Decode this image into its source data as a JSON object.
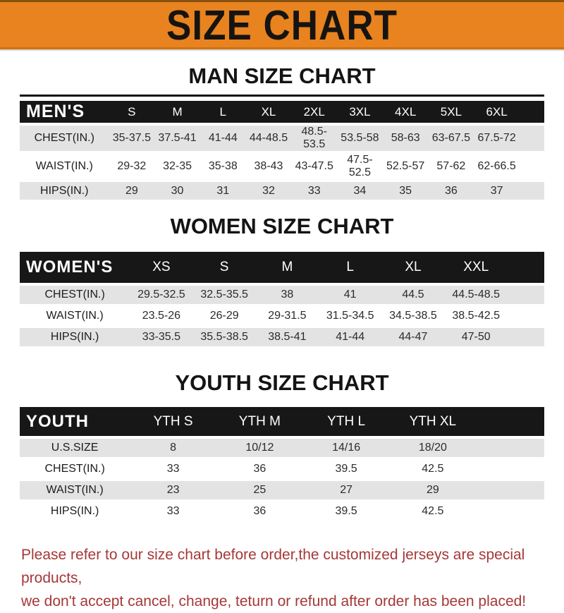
{
  "banner": {
    "title": "SIZE CHART"
  },
  "colors": {
    "banner_orange": "#E8831F",
    "header_bar_black": "#171717",
    "row_gray": "#E3E3E3",
    "footer_red": "#A63737"
  },
  "sections": [
    {
      "key": "men",
      "heading": "MAN SIZE CHART",
      "header_label": "MEN'S",
      "columns": [
        "S",
        "M",
        "L",
        "XL",
        "2XL",
        "3XL",
        "4XL",
        "5XL",
        "6XL"
      ],
      "rows": [
        {
          "label": "CHEST(IN.)",
          "values": [
            "35-37.5",
            "37.5-41",
            "41-44",
            "44-48.5",
            "48.5-53.5",
            "53.5-58",
            "58-63",
            "63-67.5",
            "67.5-72"
          ]
        },
        {
          "label": "WAIST(IN.)",
          "values": [
            "29-32",
            "32-35",
            "35-38",
            "38-43",
            "43-47.5",
            "47.5-52.5",
            "52.5-57",
            "57-62",
            "62-66.5"
          ]
        },
        {
          "label": "HIPS(IN.)",
          "values": [
            "29",
            "30",
            "31",
            "32",
            "33",
            "34",
            "35",
            "36",
            "37"
          ]
        }
      ]
    },
    {
      "key": "women",
      "heading": "WOMEN SIZE CHART",
      "header_label": "WOMEN'S",
      "columns": [
        "XS",
        "S",
        "M",
        "L",
        "XL",
        "XXL"
      ],
      "rows": [
        {
          "label": "CHEST(IN.)",
          "values": [
            "29.5-32.5",
            "32.5-35.5",
            "38",
            "41",
            "44.5",
            "44.5-48.5"
          ]
        },
        {
          "label": "WAIST(IN.)",
          "values": [
            "23.5-26",
            "26-29",
            "29-31.5",
            "31.5-34.5",
            "34.5-38.5",
            "38.5-42.5"
          ]
        },
        {
          "label": "HIPS(IN.)",
          "values": [
            "33-35.5",
            "35.5-38.5",
            "38.5-41",
            "41-44",
            "44-47",
            "47-50"
          ]
        }
      ]
    },
    {
      "key": "youth",
      "heading": "YOUTH SIZE CHART",
      "header_label": "YOUTH",
      "columns": [
        "YTH S",
        "YTH M",
        "YTH L",
        "YTH XL"
      ],
      "rows": [
        {
          "label": "U.S.SIZE",
          "values": [
            "8",
            "10/12",
            "14/16",
            "18/20"
          ]
        },
        {
          "label": "CHEST(IN.)",
          "values": [
            "33",
            "36",
            "39.5",
            "42.5"
          ]
        },
        {
          "label": "WAIST(IN.)",
          "values": [
            "23",
            "25",
            "27",
            "29"
          ]
        },
        {
          "label": "HIPS(IN.)",
          "values": [
            "33",
            "36",
            "39.5",
            "42.5"
          ]
        }
      ]
    }
  ],
  "footer": {
    "line1": "Please refer to our size chart before order,the customized jerseys are special products,",
    "line2": "we don't accept cancel, change, teturn or refund after order has been placed!"
  }
}
